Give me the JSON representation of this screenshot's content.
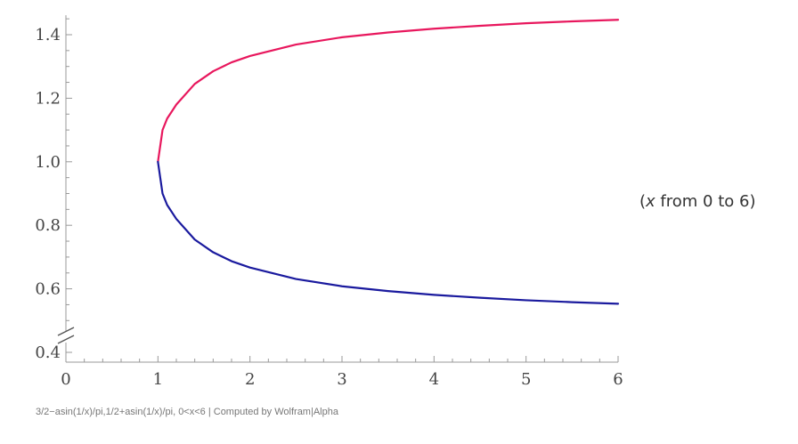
{
  "chart_data": {
    "type": "line",
    "parametric": true,
    "parameter": "x",
    "parameter_range": [
      0,
      6
    ],
    "series": [
      {
        "formula": "3/2 - asin(1/x)/pi",
        "color": "#e8175d",
        "points": [
          [
            1,
            1.0
          ],
          [
            1.05,
            1.1
          ],
          [
            1.1,
            1.136
          ],
          [
            1.2,
            1.18
          ],
          [
            1.4,
            1.245
          ],
          [
            1.6,
            1.285
          ],
          [
            1.8,
            1.313
          ],
          [
            2,
            1.333
          ],
          [
            2.5,
            1.369
          ],
          [
            3,
            1.392
          ],
          [
            3.5,
            1.407
          ],
          [
            4,
            1.419
          ],
          [
            4.5,
            1.428
          ],
          [
            5,
            1.436
          ],
          [
            5.5,
            1.442
          ],
          [
            6,
            1.447
          ]
        ]
      },
      {
        "formula": "1/2 + asin(1/x)/pi",
        "color": "#1a1a9e",
        "points": [
          [
            1,
            1.0
          ],
          [
            1.05,
            0.9
          ],
          [
            1.1,
            0.864
          ],
          [
            1.2,
            0.82
          ],
          [
            1.4,
            0.755
          ],
          [
            1.6,
            0.715
          ],
          [
            1.8,
            0.687
          ],
          [
            2,
            0.667
          ],
          [
            2.5,
            0.631
          ],
          [
            3,
            0.608
          ],
          [
            3.5,
            0.593
          ],
          [
            4,
            0.581
          ],
          [
            4.5,
            0.572
          ],
          [
            5,
            0.564
          ],
          [
            5.5,
            0.558
          ],
          [
            6,
            0.553
          ]
        ]
      }
    ],
    "xlim": [
      0,
      6
    ],
    "ylim": [
      0.4,
      1.45
    ],
    "x_ticks": [
      0,
      1,
      2,
      3,
      4,
      5,
      6
    ],
    "x_tick_labels": [
      "0",
      "1",
      "2",
      "3",
      "4",
      "5",
      "6"
    ],
    "y_ticks": [
      0.4,
      0.6,
      0.8,
      1.0,
      1.2,
      1.4
    ],
    "y_tick_labels": [
      "0.4",
      "0.6",
      "0.8",
      "1.0",
      "1.2",
      "1.4"
    ],
    "y_axis_break": true,
    "grid": false,
    "axis_color": "#999999"
  },
  "range_label": {
    "open": "(",
    "var": "x",
    "rest": " from 0 to 6)"
  },
  "footer": "3/2−asin(1/x)/pi,1/2+asin(1/x)/pi, 0<x<6 | Computed by Wolfram|Alpha"
}
